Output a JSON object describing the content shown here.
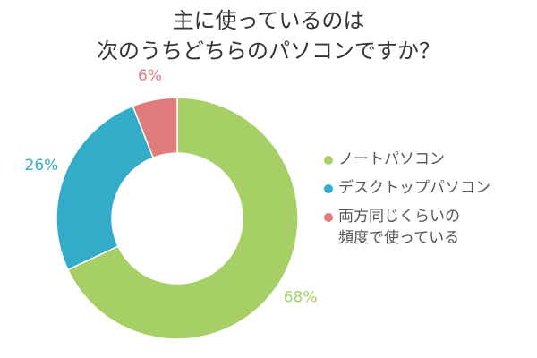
{
  "title": {
    "line1": "主に使っているのは",
    "line2": "次のうちどちらのパソコンですか？"
  },
  "chart_data": {
    "type": "pie",
    "donut": true,
    "title": "主に使っているのは次のうちどちらのパソコンですか？",
    "legend_position": "right",
    "series": [
      {
        "name": "ノートパソコン",
        "value": 68,
        "label": "68%",
        "color": "#a6cf66"
      },
      {
        "name": "デスクトップパソコン",
        "value": 26,
        "label": "26%",
        "color": "#33acc9"
      },
      {
        "name": "両方同じくらいの頻度で使っている",
        "value": 6,
        "label": "6%",
        "color": "#e07b7b"
      }
    ]
  },
  "legend": [
    {
      "lines": [
        "ノートパソコン"
      ],
      "color": "#a6cf66"
    },
    {
      "lines": [
        "デスクトップパソコン"
      ],
      "color": "#33acc9"
    },
    {
      "lines": [
        "両方同じくらいの",
        "頻度で使っている"
      ],
      "color": "#e07b7b"
    }
  ]
}
